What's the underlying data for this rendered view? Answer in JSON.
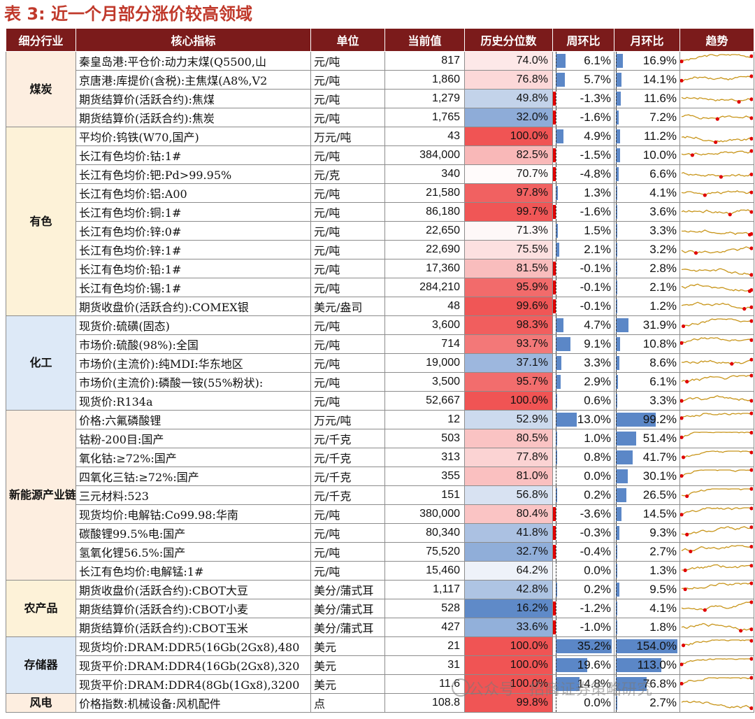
{
  "title": "表 3:  近一个月部分涨价较高领域",
  "headers": [
    "细分行业",
    "核心指标",
    "单位",
    "当前值",
    "历史分位数",
    "周环比",
    "月环比",
    "趋势"
  ],
  "colors": {
    "header_bg": "#7b1b1b",
    "coal": "#fdeee0",
    "metal": "#fdf2d8",
    "chem": "#dde9f7",
    "newenergy": "#fdeee0",
    "agri": "#fdf2d8",
    "storage": "#dde9f7",
    "wind": "#fdeee0",
    "pct_low": "#5b87c7",
    "pct_high": "#f05454",
    "weekly_pos": "#5b87c7",
    "weekly_neg": "#e00000",
    "trend_line": "#c8951a",
    "trend_dot": "#e00000"
  },
  "groups": [
    {
      "name": "煤炭",
      "color": "coal",
      "rows": [
        {
          "name": "秦皇岛港:平仓价:动力末煤(Q5500,山",
          "unit": "元/吨",
          "value": "817",
          "pct": "74.0%",
          "pctv": 74.0,
          "wow": "6.1%",
          "wowv": 6.1,
          "mom": "16.9%",
          "momv": 16.9
        },
        {
          "name": "京唐港:库提价(含税):主焦煤(A8%,V2",
          "unit": "元/吨",
          "value": "1,860",
          "pct": "76.8%",
          "pctv": 76.8,
          "wow": "5.7%",
          "wowv": 5.7,
          "mom": "14.1%",
          "momv": 14.1
        },
        {
          "name": "期货结算价(活跃合约):焦煤",
          "unit": "元/吨",
          "value": "1,279",
          "pct": "49.8%",
          "pctv": 49.8,
          "wow": "-1.3%",
          "wowv": -1.3,
          "mom": "11.6%",
          "momv": 11.6
        },
        {
          "name": "期货结算价(活跃合约):焦炭",
          "unit": "元/吨",
          "value": "1,765",
          "pct": "32.0%",
          "pctv": 32.0,
          "wow": "-1.6%",
          "wowv": -1.6,
          "mom": "7.2%",
          "momv": 7.2
        }
      ]
    },
    {
      "name": "有色",
      "color": "metal",
      "rows": [
        {
          "name": "平均价:钨铁(W70,国产)",
          "unit": "万元/吨",
          "value": "43",
          "pct": "100.0%",
          "pctv": 100.0,
          "wow": "4.9%",
          "wowv": 4.9,
          "mom": "11.2%",
          "momv": 11.2
        },
        {
          "name": "长江有色均价:钴:1#",
          "unit": "元/吨",
          "value": "384,000",
          "pct": "82.5%",
          "pctv": 82.5,
          "wow": "-1.5%",
          "wowv": -1.5,
          "mom": "10.0%",
          "momv": 10.0
        },
        {
          "name": "长江有色均价:钯:Pd>99.95%",
          "unit": "元/克",
          "value": "340",
          "pct": "70.7%",
          "pctv": 70.7,
          "wow": "-4.8%",
          "wowv": -4.8,
          "mom": "6.6%",
          "momv": 6.6
        },
        {
          "name": "长江有色均价:铝:A00",
          "unit": "元/吨",
          "value": "21,580",
          "pct": "97.8%",
          "pctv": 97.8,
          "wow": "1.3%",
          "wowv": 1.3,
          "mom": "4.1%",
          "momv": 4.1
        },
        {
          "name": "长江有色均价:铜:1#",
          "unit": "元/吨",
          "value": "86,180",
          "pct": "99.7%",
          "pctv": 99.7,
          "wow": "-1.6%",
          "wowv": -1.6,
          "mom": "3.6%",
          "momv": 3.6
        },
        {
          "name": "长江有色均价:锌:0#",
          "unit": "元/吨",
          "value": "22,650",
          "pct": "71.3%",
          "pctv": 71.3,
          "wow": "1.5%",
          "wowv": 1.5,
          "mom": "3.3%",
          "momv": 3.3
        },
        {
          "name": "长江有色均价:锌:1#",
          "unit": "元/吨",
          "value": "22,690",
          "pct": "75.5%",
          "pctv": 75.5,
          "wow": "2.1%",
          "wowv": 2.1,
          "mom": "3.2%",
          "momv": 3.2
        },
        {
          "name": "长江有色均价:铅:1#",
          "unit": "元/吨",
          "value": "17,360",
          "pct": "81.5%",
          "pctv": 81.5,
          "wow": "-0.1%",
          "wowv": -0.1,
          "mom": "2.8%",
          "momv": 2.8
        },
        {
          "name": "长江有色均价:锡:1#",
          "unit": "元/吨",
          "value": "284,210",
          "pct": "95.9%",
          "pctv": 95.9,
          "wow": "-0.1%",
          "wowv": -0.1,
          "mom": "2.1%",
          "momv": 2.1
        },
        {
          "name": "期货收盘价(活跃合约):COMEX银",
          "unit": "美元/盎司",
          "value": "48",
          "pct": "99.6%",
          "pctv": 99.6,
          "wow": "-0.1%",
          "wowv": -0.1,
          "mom": "1.2%",
          "momv": 1.2
        }
      ]
    },
    {
      "name": "化工",
      "color": "chem",
      "rows": [
        {
          "name": "现货价:硫磺(固态)",
          "unit": "元/吨",
          "value": "3,600",
          "pct": "98.3%",
          "pctv": 98.3,
          "wow": "4.7%",
          "wowv": 4.7,
          "mom": "31.9%",
          "momv": 31.9
        },
        {
          "name": "市场价:硫酸(98%):全国",
          "unit": "元/吨",
          "value": "714",
          "pct": "93.7%",
          "pctv": 93.7,
          "wow": "9.1%",
          "wowv": 9.1,
          "mom": "10.8%",
          "momv": 10.8
        },
        {
          "name": "市场价(主流价):纯MDI:华东地区",
          "unit": "元/吨",
          "value": "19,000",
          "pct": "37.1%",
          "pctv": 37.1,
          "wow": "3.3%",
          "wowv": 3.3,
          "mom": "8.6%",
          "momv": 8.6
        },
        {
          "name": "市场价(主流价):磷酸一铵(55%粉状):",
          "unit": "元/吨",
          "value": "3,500",
          "pct": "95.7%",
          "pctv": 95.7,
          "wow": "2.9%",
          "wowv": 2.9,
          "mom": "6.1%",
          "momv": 6.1
        },
        {
          "name": "现货价:R134a",
          "unit": "元/吨",
          "value": "52,667",
          "pct": "100.0%",
          "pctv": 100.0,
          "wow": "0.6%",
          "wowv": 0.6,
          "mom": "3.3%",
          "momv": 3.3
        }
      ]
    },
    {
      "name": "新能源产业链",
      "color": "newenergy",
      "rows": [
        {
          "name": "价格:六氟磷酸锂",
          "unit": "万元/吨",
          "value": "12",
          "pct": "52.9%",
          "pctv": 52.9,
          "wow": "13.0%",
          "wowv": 13.0,
          "mom": "99.2%",
          "momv": 99.2
        },
        {
          "name": "钴粉-200目:国产",
          "unit": "元/千克",
          "value": "503",
          "pct": "80.5%",
          "pctv": 80.5,
          "wow": "1.0%",
          "wowv": 1.0,
          "mom": "51.4%",
          "momv": 51.4
        },
        {
          "name": "氧化钴:≥72%:国产",
          "unit": "元/千克",
          "value": "313",
          "pct": "77.8%",
          "pctv": 77.8,
          "wow": "0.8%",
          "wowv": 0.8,
          "mom": "41.7%",
          "momv": 41.7
        },
        {
          "name": "四氧化三钴:≥72%:国产",
          "unit": "元/千克",
          "value": "355",
          "pct": "81.0%",
          "pctv": 81.0,
          "wow": "0.0%",
          "wowv": 0.0,
          "mom": "30.1%",
          "momv": 30.1
        },
        {
          "name": "三元材料:523",
          "unit": "元/千克",
          "value": "151",
          "pct": "56.8%",
          "pctv": 56.8,
          "wow": "0.2%",
          "wowv": 0.2,
          "mom": "26.5%",
          "momv": 26.5
        },
        {
          "name": "现货均价:电解钴:Co99.98:华南",
          "unit": "元/吨",
          "value": "380,000",
          "pct": "80.4%",
          "pctv": 80.4,
          "wow": "-3.6%",
          "wowv": -3.6,
          "mom": "14.5%",
          "momv": 14.5
        },
        {
          "name": "碳酸锂99.5%电:国产",
          "unit": "元/吨",
          "value": "80,340",
          "pct": "41.8%",
          "pctv": 41.8,
          "wow": "-0.3%",
          "wowv": -0.3,
          "mom": "9.3%",
          "momv": 9.3
        },
        {
          "name": "氢氧化锂56.5%:国产",
          "unit": "元/吨",
          "value": "75,520",
          "pct": "32.7%",
          "pctv": 32.7,
          "wow": "-0.4%",
          "wowv": -0.4,
          "mom": "2.7%",
          "momv": 2.7
        },
        {
          "name": "长江有色均价:电解锰:1#",
          "unit": "元/吨",
          "value": "15,460",
          "pct": "64.2%",
          "pctv": 64.2,
          "wow": "0.0%",
          "wowv": 0.0,
          "mom": "1.3%",
          "momv": 1.3
        }
      ]
    },
    {
      "name": "农产品",
      "color": "agri",
      "rows": [
        {
          "name": "期货收盘价(活跃合约):CBOT大豆",
          "unit": "美分/蒲式耳",
          "value": "1,117",
          "pct": "42.8%",
          "pctv": 42.8,
          "wow": "0.2%",
          "wowv": 0.2,
          "mom": "9.5%",
          "momv": 9.5
        },
        {
          "name": "期货结算价(活跃合约):CBOT小麦",
          "unit": "美分/蒲式耳",
          "value": "528",
          "pct": "16.2%",
          "pctv": 16.2,
          "wow": "-1.2%",
          "wowv": -1.2,
          "mom": "4.1%",
          "momv": 4.1
        },
        {
          "name": "期货结算价(活跃合约):CBOT玉米",
          "unit": "美分/蒲式耳",
          "value": "427",
          "pct": "33.6%",
          "pctv": 33.6,
          "wow": "-1.0%",
          "wowv": -1.0,
          "mom": "1.8%",
          "momv": 1.8
        }
      ]
    },
    {
      "name": "存储器",
      "color": "storage",
      "rows": [
        {
          "name": "现货均价:DRAM:DDR5(16Gb(2Gx8),480",
          "unit": "美元",
          "value": "21",
          "pct": "100.0%",
          "pctv": 100.0,
          "wow": "35.2%",
          "wowv": 35.2,
          "mom": "154.0%",
          "momv": 154.0
        },
        {
          "name": "现货平价:DRAM:DDR4(16Gb(2Gx8),320",
          "unit": "美元",
          "value": "31",
          "pct": "100.0%",
          "pctv": 100.0,
          "wow": "19.6%",
          "wowv": 19.6,
          "mom": "113.0%",
          "momv": 113.0
        },
        {
          "name": "现货平价:DRAM:DDR4(8Gb(1Gx8),3200",
          "unit": "美元",
          "value": "11.6",
          "pct": "100.0%",
          "pctv": 100.0,
          "wow": "14.8%",
          "wowv": 14.8,
          "mom": "76.8%",
          "momv": 76.8
        }
      ]
    },
    {
      "name": "风电",
      "color": "wind",
      "rows": [
        {
          "name": "价格指数:机械设备:风机配件",
          "unit": "点",
          "value": "108.8",
          "pct": "99.8%",
          "pctv": 99.8,
          "wow": "0.0%",
          "wowv": 0.0,
          "mom": "2.7%",
          "momv": 2.7
        }
      ]
    }
  ],
  "watermark": "公众号 · 招商证券策略研究"
}
